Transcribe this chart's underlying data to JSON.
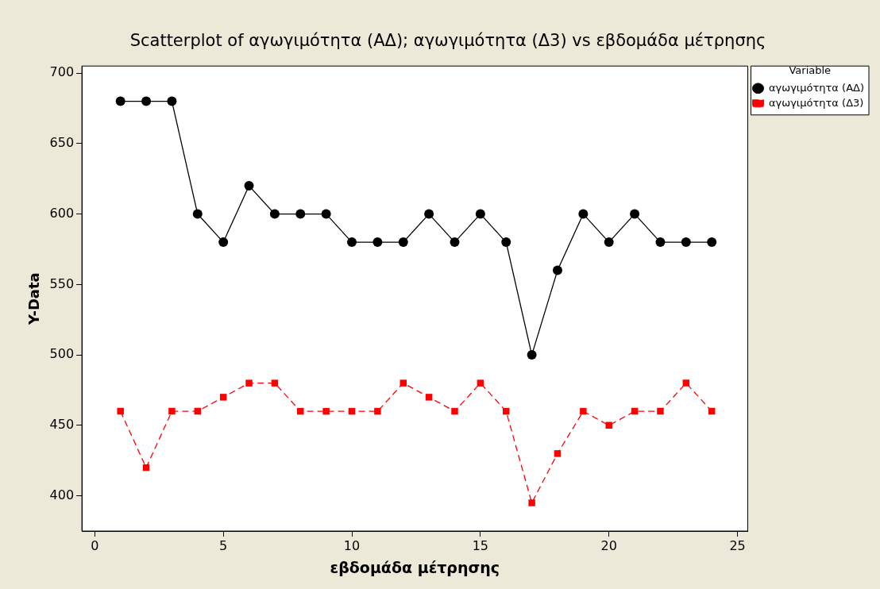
{
  "chart_data": {
    "type": "line",
    "title": "Scatterplot of αγωγιμότητα (ΑΔ); αγωγιμότητα (Δ3) vs εβδομάδα μέτρησης",
    "xlabel": "εβδομάδα μέτρησης",
    "ylabel": "Y-Data",
    "legend_title": "Variable",
    "legend": "top right",
    "grid": false,
    "x": [
      1,
      2,
      3,
      4,
      5,
      6,
      7,
      8,
      9,
      10,
      11,
      12,
      13,
      14,
      15,
      16,
      17,
      18,
      19,
      20,
      21,
      22,
      23,
      24
    ],
    "xlim": [
      -0.5,
      25.4
    ],
    "xticks": [
      0,
      5,
      10,
      15,
      20,
      25
    ],
    "ylim": [
      375,
      705
    ],
    "yticks": [
      400,
      450,
      500,
      550,
      600,
      650,
      700
    ],
    "series": [
      {
        "name": "αγωγιμότητα (ΑΔ)",
        "color": "#000000",
        "marker": "circle",
        "line_style": "solid",
        "values": [
          680,
          680,
          680,
          600,
          580,
          620,
          600,
          600,
          600,
          580,
          580,
          580,
          600,
          580,
          600,
          580,
          500,
          560,
          600,
          580,
          600,
          580,
          580,
          580
        ]
      },
      {
        "name": "αγωγιμότητα (Δ3)",
        "color": "#ff0000",
        "marker": "square",
        "line_style": "dashed",
        "values": [
          460,
          420,
          460,
          460,
          470,
          480,
          480,
          460,
          460,
          460,
          460,
          480,
          470,
          460,
          480,
          460,
          395,
          430,
          460,
          450,
          460,
          460,
          480,
          460
        ]
      }
    ]
  }
}
